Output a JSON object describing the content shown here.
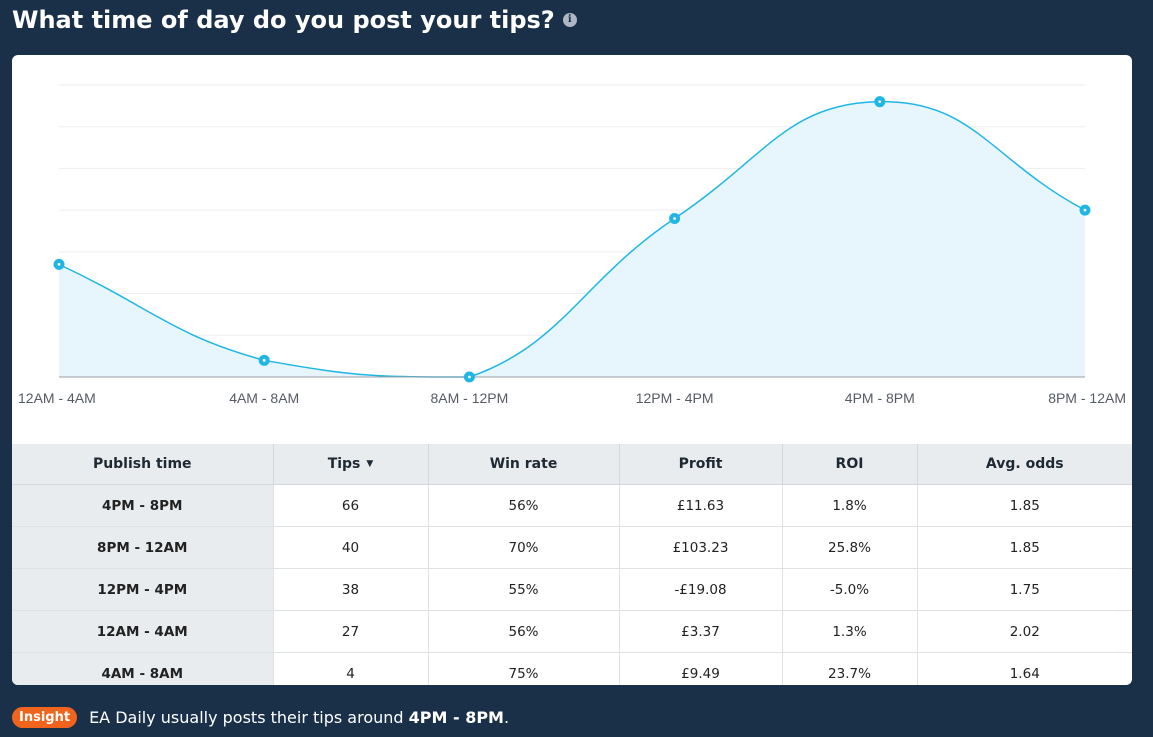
{
  "header": {
    "title": "What time of day do you post your tips?",
    "info_icon": "info-icon"
  },
  "chart_data": {
    "type": "area",
    "categories": [
      "12AM - 4AM",
      "4AM - 8AM",
      "8AM - 12PM",
      "12PM - 4PM",
      "4PM - 8PM",
      "8PM - 12AM"
    ],
    "values": [
      27,
      4,
      0,
      38,
      66,
      40
    ],
    "ylim": [
      0,
      70
    ],
    "grid": true,
    "colors": {
      "line": "#1fb6e6",
      "fill": "#e6f6fc"
    }
  },
  "table": {
    "headers": [
      "Publish time",
      "Tips",
      "Win rate",
      "Profit",
      "ROI",
      "Avg. odds"
    ],
    "rows": [
      [
        "4PM - 8PM",
        "66",
        "56%",
        "£11.63",
        "1.8%",
        "1.85"
      ],
      [
        "8PM - 12AM",
        "40",
        "70%",
        "£103.23",
        "25.8%",
        "1.85"
      ],
      [
        "12PM - 4PM",
        "38",
        "55%",
        "-£19.08",
        "-5.0%",
        "1.75"
      ],
      [
        "12AM - 4AM",
        "27",
        "56%",
        "£3.37",
        "1.3%",
        "2.02"
      ],
      [
        "4AM - 8AM",
        "4",
        "75%",
        "£9.49",
        "23.7%",
        "1.64"
      ]
    ]
  },
  "insight": {
    "badge": "Insight",
    "text_prefix": "EA Daily usually posts their tips around ",
    "highlight": "4PM - 8PM",
    "text_suffix": "."
  }
}
